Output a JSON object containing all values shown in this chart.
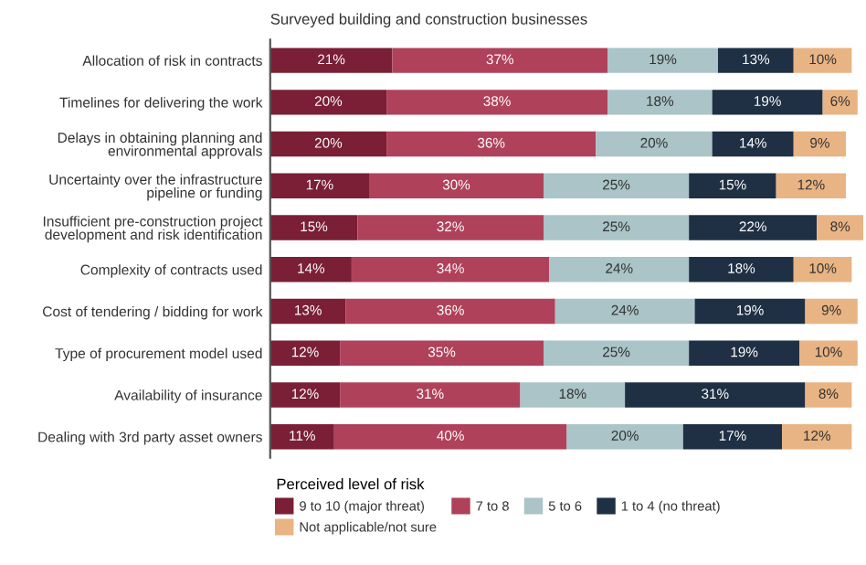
{
  "chart_data": {
    "type": "bar",
    "orientation": "horizontal",
    "stacked": true,
    "title": "Surveyed building and construction businesses",
    "legend_title": "Perceived level of risk",
    "legend": "bottom",
    "grid": false,
    "categories": [
      "Allocation of risk in contracts",
      "Timelines for delivering the work",
      "Delays in obtaining planning and\nenvironmental approvals",
      "Uncertainty over the infrastructure\npipeline or funding",
      "Insufficient pre-construction project\ndevelopment and risk identification",
      "Complexity of contracts used",
      "Cost of tendering / bidding for work",
      "Type of procurement model used",
      "Availability of insurance",
      "Dealing with 3rd party asset owners"
    ],
    "series": [
      {
        "name": "9 to 10 (major threat)",
        "color": "#7a1f35",
        "values": [
          21,
          20,
          20,
          17,
          15,
          14,
          13,
          12,
          12,
          11
        ],
        "value_labels": [
          "21%",
          "20%",
          "20%",
          "17%",
          "15%",
          "14%",
          "13%",
          "12%",
          "12%",
          "11%"
        ]
      },
      {
        "name": "7 to 8",
        "color": "#b0415a",
        "values": [
          37,
          38,
          36,
          30,
          32,
          34,
          36,
          35,
          31,
          40
        ],
        "value_labels": [
          "37%",
          "38%",
          "36%",
          "30%",
          "32%",
          "34%",
          "36%",
          "35%",
          "31%",
          "40%"
        ]
      },
      {
        "name": "5 to 6",
        "color": "#aac4c7",
        "values": [
          19,
          18,
          20,
          25,
          25,
          24,
          24,
          25,
          18,
          20
        ],
        "value_labels": [
          "19%",
          "18%",
          "20%",
          "25%",
          "25%",
          "24%",
          "24%",
          "25%",
          "18%",
          "20%"
        ]
      },
      {
        "name": "1 to 4 (no threat)",
        "color": "#1f3044",
        "values": [
          13,
          19,
          14,
          15,
          22,
          18,
          19,
          19,
          31,
          17
        ],
        "value_labels": [
          "13%",
          "19%",
          "14%",
          "15%",
          "22%",
          "18%",
          "19%",
          "19%",
          "31%",
          "17%"
        ]
      },
      {
        "name": "Not applicable/not sure",
        "color": "#e9b483",
        "values": [
          10,
          6,
          9,
          12,
          8,
          10,
          9,
          10,
          8,
          12
        ],
        "value_labels": [
          "10%",
          "6%",
          "9%",
          "12%",
          "8%",
          "10%",
          "9%",
          "10%",
          "8%",
          "12%"
        ]
      }
    ]
  }
}
